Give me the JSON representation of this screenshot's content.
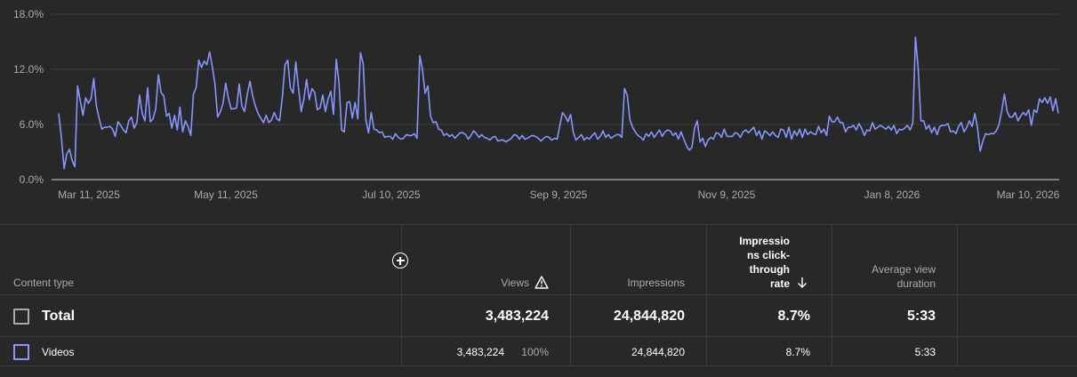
{
  "chart_data": {
    "type": "line",
    "ylim": [
      0,
      18
    ],
    "y_ticks": [
      "18.0%",
      "12.0%",
      "6.0%",
      "0.0%"
    ],
    "x_ticks": [
      "Mar 11, 2025",
      "May 11, 2025",
      "Jul 10, 2025",
      "Sep 9, 2025",
      "Nov 9, 2025",
      "Jan 8, 2026",
      "Mar 10, 2026"
    ],
    "x_range": [
      "2025-03-11",
      "2026-03-10"
    ],
    "grid": true,
    "series": [
      {
        "color": "#8796ff",
        "values": [
          7.2,
          4.6,
          1.2,
          2.8,
          3.3,
          2.1,
          1.4,
          10.2,
          8.6,
          7.0,
          8.9,
          8.3,
          8.8,
          11.0,
          8.0,
          6.7,
          5.5,
          5.7,
          5.7,
          5.8,
          5.5,
          4.7,
          6.3,
          5.9,
          5.4,
          5.1,
          6.4,
          6.8,
          5.6,
          6.2,
          9.2,
          7.2,
          6.4,
          10.0,
          6.3,
          6.6,
          7.7,
          11.4,
          9.5,
          9.1,
          6.9,
          7.2,
          5.6,
          7.0,
          5.4,
          7.9,
          5.2,
          6.4,
          5.8,
          4.8,
          9.3,
          10.0,
          13.0,
          12.2,
          12.9,
          12.5,
          13.9,
          12.3,
          10.4,
          6.8,
          7.4,
          8.3,
          10.5,
          8.8,
          7.7,
          7.7,
          7.8,
          10.4,
          8.0,
          7.4,
          9.3,
          10.7,
          9.1,
          8.0,
          7.2,
          6.7,
          6.2,
          7.0,
          6.2,
          6.5,
          7.3,
          6.6,
          6.4,
          9.0,
          12.5,
          13.0,
          10.0,
          9.4,
          12.8,
          10.0,
          7.4,
          8.8,
          10.9,
          8.7,
          9.9,
          9.5,
          7.6,
          7.8,
          9.2,
          7.4,
          8.8,
          9.6,
          7.1,
          13.1,
          10.6,
          5.4,
          5.2,
          8.4,
          8.5,
          6.7,
          8.4,
          6.6,
          13.8,
          12.6,
          6.5,
          5.1,
          7.3,
          5.5,
          5.4,
          5.1,
          5.2,
          4.6,
          4.7,
          4.7,
          4.4,
          5.0,
          4.6,
          4.4,
          4.5,
          4.9,
          4.8,
          4.8,
          5.0,
          4.5,
          13.5,
          12.0,
          9.4,
          10.2,
          6.9,
          6.2,
          6.3,
          5.5,
          5.4,
          4.8,
          5.0,
          4.7,
          4.9,
          4.5,
          4.8,
          5.1,
          5.1,
          4.9,
          4.4,
          4.8,
          5.3,
          5.0,
          4.6,
          4.9,
          4.6,
          4.5,
          4.3,
          4.6,
          4.7,
          4.2,
          4.3,
          4.3,
          4.1,
          4.3,
          4.5,
          4.9,
          4.8,
          4.4,
          4.8,
          4.4,
          4.5,
          4.7,
          4.8,
          4.7,
          4.5,
          4.2,
          4.5,
          4.7,
          4.6,
          4.3,
          4.5,
          4.4,
          5.9,
          7.3,
          6.9,
          6.3,
          7.1,
          5.1,
          4.3,
          4.6,
          4.9,
          4.3,
          4.6,
          4.4,
          4.8,
          5.1,
          4.4,
          4.7,
          5.3,
          4.6,
          4.9,
          4.5,
          4.7,
          4.9,
          4.9,
          4.6,
          9.9,
          9.2,
          6.5,
          5.7,
          5.2,
          4.8,
          4.6,
          4.3,
          5.0,
          4.7,
          5.2,
          4.6,
          5.0,
          5.4,
          4.7,
          5.2,
          5.4,
          5.3,
          4.8,
          5.1,
          4.4,
          5.2,
          4.4,
          3.7,
          3.2,
          3.5,
          5.6,
          6.4,
          4.1,
          4.5,
          3.6,
          4.3,
          4.6,
          4.4,
          5.1,
          5.0,
          4.6,
          5.5,
          4.7,
          4.7,
          4.7,
          5.1,
          5.0,
          4.6,
          5.2,
          5.4,
          5.1,
          5.4,
          5.7,
          4.8,
          5.3,
          4.4,
          5.3,
          5.1,
          4.8,
          5.2,
          4.8,
          4.6,
          5.5,
          5.4,
          4.6,
          5.7,
          4.4,
          5.3,
          4.8,
          5.5,
          4.6,
          5.5,
          4.9,
          5.2,
          5.0,
          4.9,
          5.8,
          5.1,
          5.5,
          4.8,
          6.9,
          6.3,
          6.3,
          6.8,
          6.2,
          6.2,
          5.2,
          5.7,
          5.7,
          5.9,
          5.4,
          6.1,
          5.6,
          4.8,
          5.4,
          5.3,
          6.2,
          5.5,
          5.7,
          5.9,
          5.7,
          5.5,
          5.8,
          5.4,
          5.9,
          5.0,
          5.5,
          5.4,
          5.6,
          5.9,
          5.4,
          6.2,
          15.5,
          12.0,
          6.4,
          6.4,
          5.5,
          5.9,
          5.1,
          5.7,
          4.9,
          5.8,
          5.9,
          5.9,
          6.1,
          5.2,
          5.3,
          5.0,
          5.8,
          6.2,
          5.2,
          5.7,
          6.4,
          5.8,
          7.2,
          5.7,
          3.1,
          4.2,
          5.0,
          4.9,
          5.0,
          5.0,
          5.3,
          6.0,
          7.5,
          9.3,
          7.4,
          6.8,
          6.8,
          7.3,
          6.4,
          6.9,
          7.3,
          7.0,
          7.6,
          5.9,
          7.6,
          7.3,
          8.8,
          8.4,
          8.9,
          8.3,
          9.0,
          7.5,
          8.8,
          7.2
        ]
      }
    ]
  },
  "table": {
    "add_column_icon": "plus-circle-icon",
    "headers": {
      "content_type": "Content type",
      "views": "Views",
      "views_icon": "warning-icon",
      "impressions": "Impressions",
      "ctr": [
        "Impressio",
        "ns click-",
        "through",
        "rate"
      ],
      "ctr_sort_icon": "arrow-down-icon",
      "avg_duration": [
        "Average view",
        "duration"
      ]
    },
    "total": {
      "label": "Total",
      "views": "3,483,224",
      "impressions": "24,844,820",
      "ctr": "8.7%",
      "avg_duration": "5:33"
    },
    "videos": {
      "label": "Videos",
      "views": "3,483,224",
      "views_pct": "100%",
      "impressions": "24,844,820",
      "ctr": "8.7%",
      "avg_duration": "5:33",
      "color": "#8796ff"
    }
  }
}
